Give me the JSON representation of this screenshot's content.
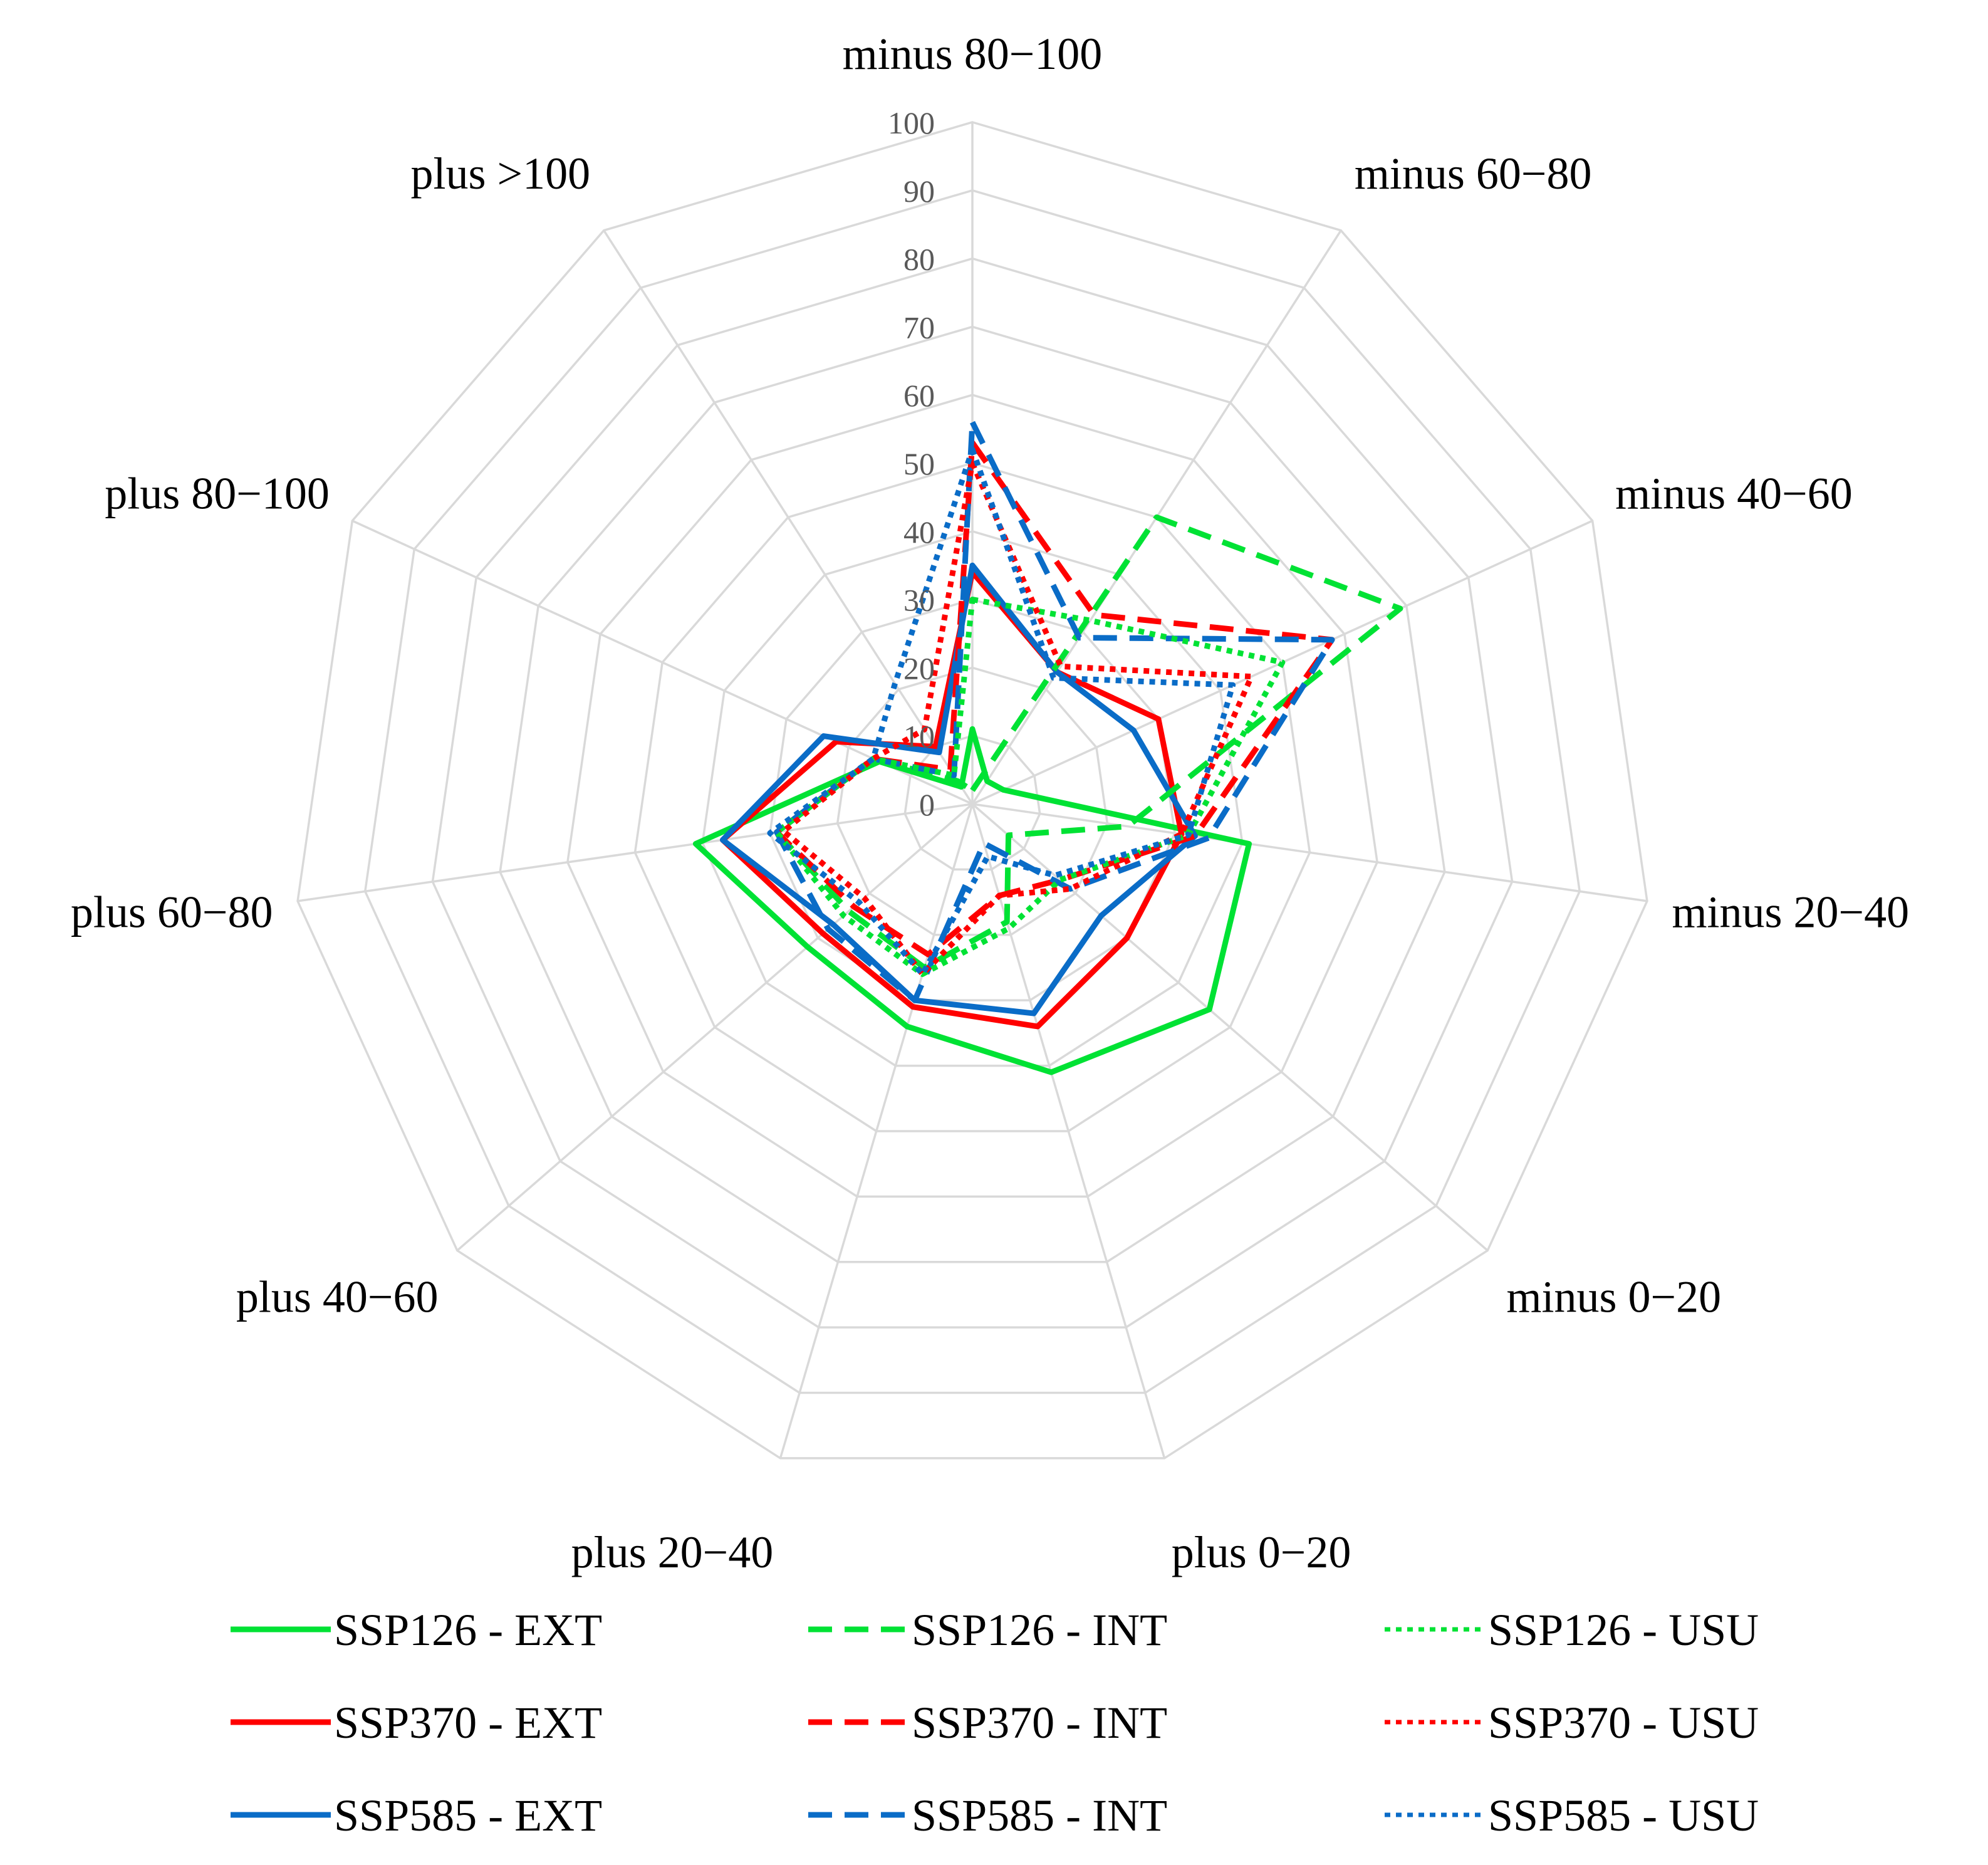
{
  "chart_data": {
    "type": "radar",
    "title": "",
    "rmax": 100,
    "ticks": [
      "0",
      "10",
      "20",
      "30",
      "40",
      "50",
      "60",
      "70",
      "80",
      "90",
      "100"
    ],
    "categories": [
      "minus 80−100",
      "minus 60−80",
      "minus 40−60",
      "minus 20−40",
      "minus 0−20",
      "plus 0−20",
      "plus 20−40",
      "plus 40−60",
      "plus 60−80",
      "plus 80−100",
      "plus >100"
    ],
    "series": [
      {
        "name": "SSP126 - EXT",
        "color": "#00e234",
        "dash": "solid",
        "values": [
          11,
          4,
          5,
          41,
          46,
          41,
          34,
          32,
          41,
          15,
          3
        ]
      },
      {
        "name": "SSP370 - EXT",
        "color": "#ff0000",
        "dash": "solid",
        "values": [
          34,
          23,
          30,
          31,
          30,
          34,
          31,
          29,
          37,
          22,
          10
        ]
      },
      {
        "name": "SSP585 - EXT",
        "color": "#0a6cc7",
        "dash": "solid",
        "values": [
          35,
          23,
          26,
          33,
          25,
          32,
          30,
          27,
          37,
          24,
          9
        ]
      },
      {
        "name": "SSP126 - INT",
        "color": "#00e234",
        "dash": "dashed",
        "values": [
          2,
          50,
          69,
          23,
          7,
          18,
          25,
          24,
          29,
          16,
          4
        ]
      },
      {
        "name": "SSP370 - INT",
        "color": "#ff0000",
        "dash": "dashed",
        "values": [
          53,
          33,
          58,
          33,
          17,
          14,
          23,
          23,
          29,
          16,
          6
        ]
      },
      {
        "name": "SSP585 - INT",
        "color": "#0a6cc7",
        "dash": "dashed",
        "values": [
          56,
          29,
          58,
          35,
          19,
          6,
          30,
          28,
          29,
          16,
          5
        ]
      },
      {
        "name": "SSP126 - USU",
        "color": "#00e234",
        "dash": "dotted",
        "values": [
          30,
          32,
          50,
          32,
          17,
          19,
          26,
          25,
          29,
          16,
          5
        ]
      },
      {
        "name": "SSP370 - USU",
        "color": "#ff0000",
        "dash": "dotted",
        "values": [
          50,
          24,
          45,
          31,
          19,
          14,
          26,
          21,
          28,
          16,
          13
        ]
      },
      {
        "name": "SSP585 - USU",
        "color": "#0a6cc7",
        "dash": "dotted",
        "values": [
          52,
          22,
          42,
          32,
          16,
          8,
          26,
          22,
          30,
          16,
          21
        ]
      }
    ]
  }
}
